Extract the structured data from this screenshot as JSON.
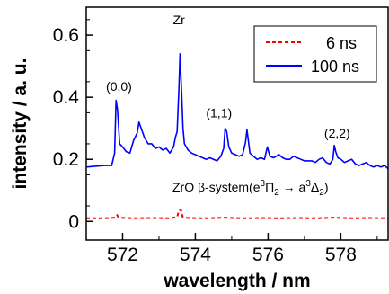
{
  "chart_data": {
    "type": "line",
    "title": "",
    "xlabel": "wavelength / nm",
    "ylabel": "intensity / a. u.",
    "xlim": [
      571.0,
      579.3
    ],
    "ylim": [
      -0.06,
      0.69
    ],
    "xticks": [
      572,
      574,
      576,
      578
    ],
    "xtick_labels": [
      "572",
      "574",
      "576",
      "578"
    ],
    "yticks": [
      0,
      0.2,
      0.4,
      0.6
    ],
    "ytick_labels": [
      "0",
      "0.2",
      "0.4",
      "0.6"
    ],
    "grid": false,
    "legend_position": "top-right",
    "series": [
      {
        "name": "6 ns",
        "color": "#ff0000",
        "style": "dashed",
        "x": [
          571.0,
          571.5,
          571.8,
          571.85,
          571.9,
          572.3,
          572.8,
          573.3,
          573.5,
          573.55,
          573.6,
          573.65,
          573.8,
          574.3,
          574.8,
          575.3,
          575.8,
          576.3,
          576.8,
          577.3,
          577.8,
          578.3,
          578.8,
          579.3
        ],
        "y": [
          0.01,
          0.01,
          0.012,
          0.02,
          0.012,
          0.01,
          0.011,
          0.01,
          0.014,
          0.035,
          0.038,
          0.015,
          0.011,
          0.01,
          0.012,
          0.01,
          0.011,
          0.01,
          0.011,
          0.01,
          0.012,
          0.01,
          0.011,
          0.01
        ]
      },
      {
        "name": "100 ns",
        "color": "#0000ff",
        "style": "solid",
        "x": [
          571.0,
          571.5,
          571.7,
          571.78,
          571.82,
          571.86,
          571.92,
          572.0,
          572.1,
          572.2,
          572.3,
          572.4,
          572.45,
          572.6,
          572.7,
          572.8,
          572.9,
          573.0,
          573.1,
          573.2,
          573.3,
          573.4,
          573.45,
          573.5,
          573.55,
          573.58,
          573.62,
          573.66,
          573.7,
          573.8,
          573.9,
          574.0,
          574.1,
          574.2,
          574.3,
          574.4,
          574.5,
          574.6,
          574.7,
          574.78,
          574.82,
          574.86,
          574.92,
          575.0,
          575.1,
          575.2,
          575.3,
          575.38,
          575.42,
          575.46,
          575.5,
          575.6,
          575.7,
          575.8,
          575.9,
          575.98,
          576.05,
          576.15,
          576.3,
          576.4,
          576.5,
          576.6,
          576.7,
          576.8,
          576.9,
          577.0,
          577.1,
          577.2,
          577.3,
          577.4,
          577.5,
          577.6,
          577.7,
          577.78,
          577.82,
          577.86,
          577.92,
          578.0,
          578.1,
          578.2,
          578.3,
          578.4,
          578.5,
          578.6,
          578.7,
          578.8,
          578.9,
          579.0,
          579.1,
          579.2,
          579.3
        ],
        "y": [
          0.175,
          0.18,
          0.18,
          0.22,
          0.39,
          0.36,
          0.25,
          0.24,
          0.225,
          0.22,
          0.26,
          0.285,
          0.32,
          0.27,
          0.25,
          0.25,
          0.235,
          0.24,
          0.23,
          0.235,
          0.22,
          0.24,
          0.27,
          0.29,
          0.43,
          0.54,
          0.42,
          0.3,
          0.25,
          0.23,
          0.22,
          0.215,
          0.21,
          0.205,
          0.2,
          0.205,
          0.2,
          0.195,
          0.21,
          0.235,
          0.3,
          0.29,
          0.24,
          0.22,
          0.215,
          0.21,
          0.215,
          0.255,
          0.295,
          0.26,
          0.22,
          0.21,
          0.2,
          0.205,
          0.2,
          0.24,
          0.21,
          0.205,
          0.215,
          0.205,
          0.2,
          0.2,
          0.21,
          0.205,
          0.2,
          0.195,
          0.195,
          0.195,
          0.19,
          0.2,
          0.205,
          0.19,
          0.185,
          0.2,
          0.245,
          0.225,
          0.205,
          0.2,
          0.19,
          0.195,
          0.2,
          0.185,
          0.18,
          0.185,
          0.19,
          0.18,
          0.175,
          0.18,
          0.175,
          0.18,
          0.17
        ]
      }
    ],
    "annotations": [
      {
        "text": "(0,0)",
        "x": 571.9,
        "y": 0.42
      },
      {
        "text": "Zr",
        "x": 573.55,
        "y": 0.635
      },
      {
        "text": "(1,1)",
        "x": 574.65,
        "y": 0.335
      },
      {
        "text": "(2,2)",
        "x": 577.9,
        "y": 0.27
      }
    ],
    "system_label": {
      "prefix": "ZrO β-system(e",
      "upper_state_sup": "3",
      "upper_state": "Π",
      "upper_state_sub": "2",
      "arrow": " → a",
      "lower_state_sup": "3",
      "lower_state": "Δ",
      "lower_state_sub": "2",
      "suffix": ")"
    }
  }
}
